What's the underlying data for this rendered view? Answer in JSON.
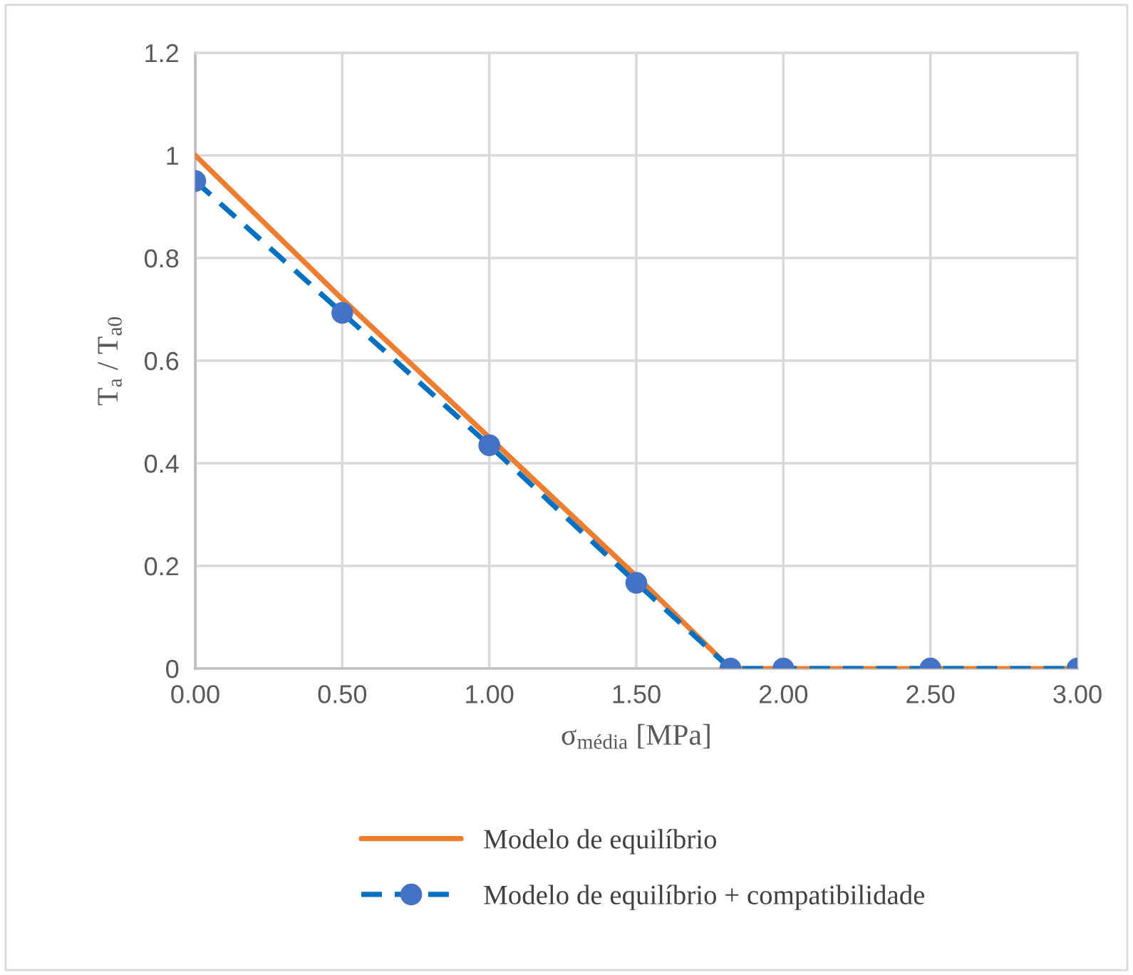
{
  "chart_data": {
    "type": "line",
    "xlabel": "σ$_{média}$ [MPa]",
    "ylabel": "T$_{a}$ / T$_{a0}$",
    "x": [
      0,
      0.5,
      1,
      1.5,
      1.82,
      2,
      2.5,
      3
    ],
    "series": [
      {
        "name": "Modelo de equilíbrio",
        "color": "#ed7d31",
        "values": [
          1,
          0.72,
          0.45,
          0.18,
          0,
          0,
          0,
          0
        ],
        "line_style": "solid"
      },
      {
        "name": "Modelo de equilíbrio + compatibilidade",
        "color": "#0070c0",
        "values": [
          0.95,
          0.693,
          0.435,
          0.167,
          0,
          0,
          0,
          0
        ],
        "marker": "circle",
        "line_style": "dashed"
      }
    ],
    "xlim": [
      0,
      3
    ],
    "ylim": [
      0,
      1.2
    ],
    "xticks": [
      {
        "value": 0,
        "label": "0.00"
      },
      {
        "value": 0.5,
        "label": "0.50"
      },
      {
        "value": 1,
        "label": "1.00"
      },
      {
        "value": 1.5,
        "label": "1.50"
      },
      {
        "value": 2,
        "label": "2.00"
      },
      {
        "value": 2.5,
        "label": "2.50"
      },
      {
        "value": 3,
        "label": "3.00"
      }
    ],
    "yticks": [
      0,
      0.2,
      0.4,
      0.6,
      0.8,
      1,
      1.2
    ],
    "grid": true,
    "legend": "bottom"
  }
}
